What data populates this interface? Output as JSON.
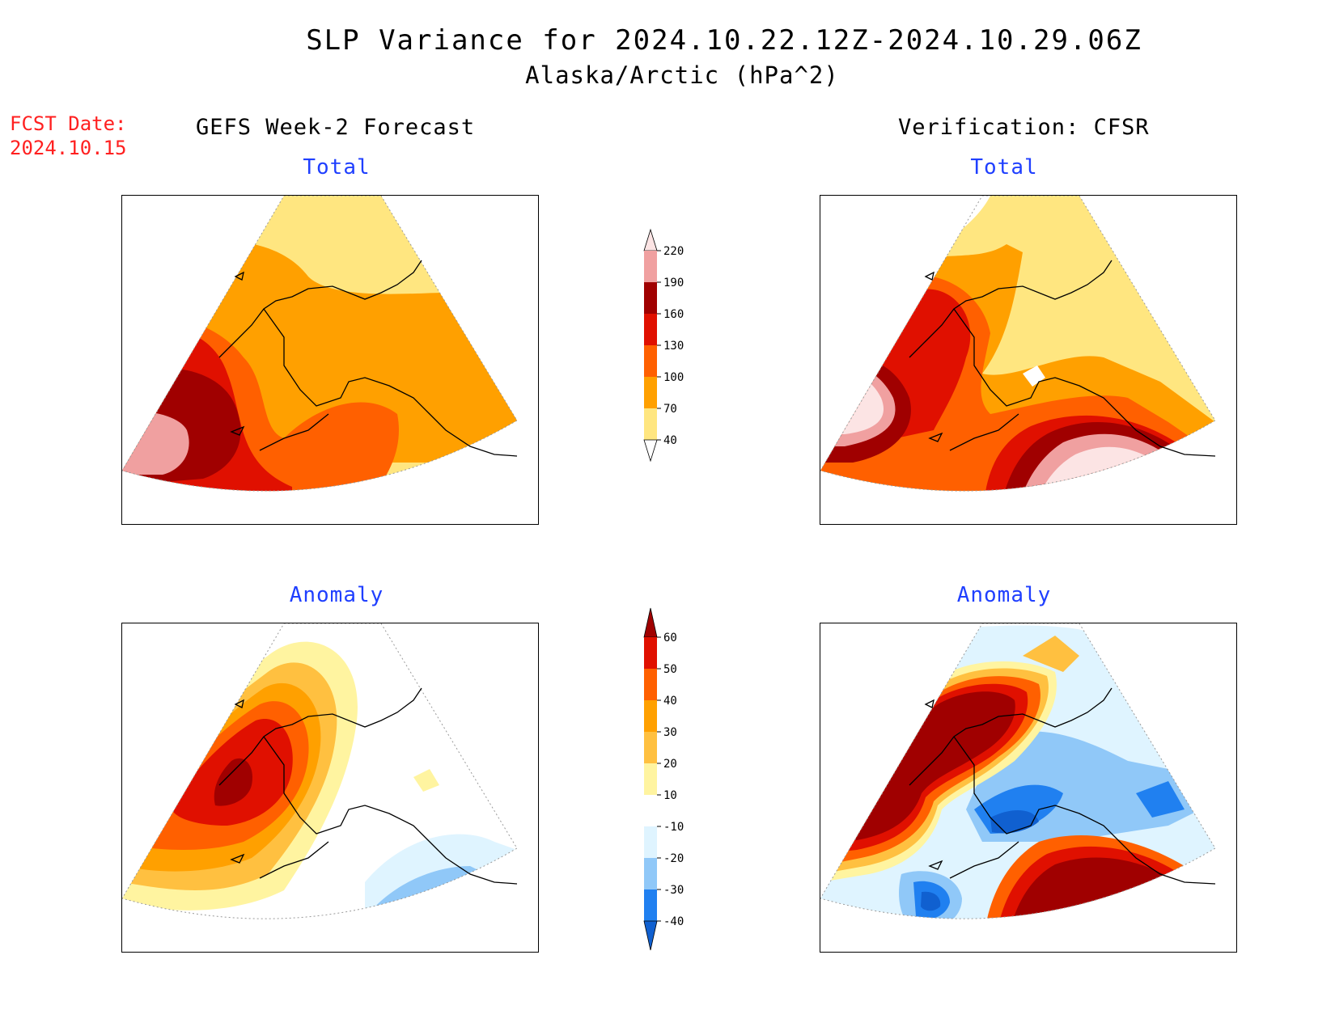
{
  "title_line1": "SLP Variance for 2024.10.22.12Z-2024.10.29.06Z",
  "title_line2": "Alaska/Arctic (hPa^2)",
  "fcst_date_label": "FCST Date:",
  "fcst_date_value": "2024.10.15",
  "left_column_title": "GEFS Week-2 Forecast",
  "right_column_title": "Verification: CFSR",
  "panels": {
    "forecast_total": {
      "title": "Total"
    },
    "verification_total": {
      "title": "Total"
    },
    "forecast_anomaly": {
      "title": "Anomaly"
    },
    "verification_anomaly": {
      "title": "Anomaly"
    }
  },
  "colorbars": {
    "total": {
      "levels": [
        "40",
        "70",
        "100",
        "130",
        "160",
        "190",
        "220"
      ],
      "colors": [
        "#ffe680",
        "#ffa000",
        "#ff6000",
        "#e01000",
        "#a00000",
        "#f0a0a0",
        "#fce4e4"
      ]
    },
    "anomaly": {
      "levels": [
        "-40",
        "-30",
        "-20",
        "-10",
        "10",
        "20",
        "30",
        "40",
        "50",
        "60"
      ],
      "colors": [
        "#1060d0",
        "#2080f0",
        "#90c8f8",
        "#dff4ff",
        "#ffffff",
        "#fff4a0",
        "#ffc040",
        "#ffa000",
        "#ff6000",
        "#e01000",
        "#a00000"
      ]
    }
  },
  "palette": {
    "title_color": "#1f3fff",
    "fcst_color": "#ff2020"
  }
}
